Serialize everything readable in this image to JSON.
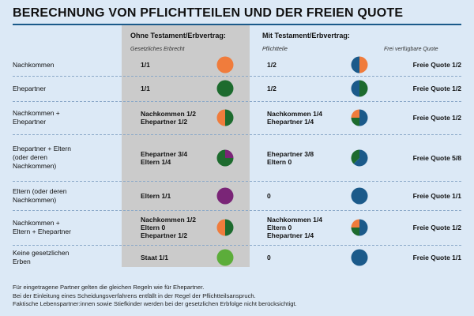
{
  "title": "BERECHNUNG VON PFLICHTTEILEN UND DER FREIEN QUOTE",
  "headers": {
    "col1": "Ohne Testament/Erbvertrag:",
    "col1_sub": "Gesetzliches Erbrecht",
    "col2": "Mit Testament/Erbvertrag:",
    "col2_sub": "Pflichtteile",
    "col3_sub": "Frei verfügbare Quote"
  },
  "colors": {
    "nachkommen": "#f07c3c",
    "ehepartner": "#1d6b2e",
    "eltern": "#7a2577",
    "staat": "#5cad3a",
    "freie_quote": "#1b5a8a"
  },
  "rows": [
    {
      "label": [
        "Nachkommen"
      ],
      "legal": [
        "1/1"
      ],
      "legal_pie": [
        {
          "color": "nachkommen",
          "fraction": 1.0
        }
      ],
      "compulsory": [
        "1/2"
      ],
      "compulsory_pie": [
        {
          "color": "nachkommen",
          "fraction": 0.5
        },
        {
          "color": "freie_quote",
          "fraction": 0.5
        }
      ],
      "free_quote": "Freie Quote 1/2"
    },
    {
      "label": [
        "Ehepartner"
      ],
      "legal": [
        "1/1"
      ],
      "legal_pie": [
        {
          "color": "ehepartner",
          "fraction": 1.0
        }
      ],
      "compulsory": [
        "1/2"
      ],
      "compulsory_pie": [
        {
          "color": "ehepartner",
          "fraction": 0.5
        },
        {
          "color": "freie_quote",
          "fraction": 0.5
        }
      ],
      "free_quote": "Freie Quote 1/2"
    },
    {
      "label": [
        "Nachkommen +",
        "Ehepartner"
      ],
      "legal": [
        "Nachkommen 1/2",
        "Ehepartner 1/2"
      ],
      "legal_pie": [
        {
          "color": "ehepartner",
          "fraction": 0.5
        },
        {
          "color": "nachkommen",
          "fraction": 0.5
        }
      ],
      "compulsory": [
        "Nachkommen 1/4",
        "Ehepartner 1/4"
      ],
      "compulsory_pie": [
        {
          "color": "freie_quote",
          "fraction": 0.5
        },
        {
          "color": "ehepartner",
          "fraction": 0.25
        },
        {
          "color": "nachkommen",
          "fraction": 0.25
        }
      ],
      "free_quote": "Freie Quote 1/2"
    },
    {
      "label": [
        "Ehepartner + Eltern",
        "(oder deren",
        "Nachkommen)"
      ],
      "legal": [
        "Ehepartner 3/4",
        "Eltern 1/4"
      ],
      "legal_pie": [
        {
          "color": "eltern",
          "fraction": 0.25
        },
        {
          "color": "ehepartner",
          "fraction": 0.75
        }
      ],
      "compulsory": [
        "Ehepartner 3/8",
        "Eltern 0"
      ],
      "compulsory_pie": [
        {
          "color": "freie_quote",
          "fraction": 0.625
        },
        {
          "color": "ehepartner",
          "fraction": 0.375
        }
      ],
      "free_quote": "Freie Quote 5/8"
    },
    {
      "label": [
        "Eltern (oder deren",
        "Nachkommen)"
      ],
      "legal": [
        "Eltern 1/1"
      ],
      "legal_pie": [
        {
          "color": "eltern",
          "fraction": 1.0
        }
      ],
      "compulsory": [
        "0"
      ],
      "compulsory_pie": [
        {
          "color": "freie_quote",
          "fraction": 1.0
        }
      ],
      "free_quote": "Freie Quote 1/1"
    },
    {
      "label": [
        "Nachkommen +",
        "Eltern + Ehepartner"
      ],
      "legal": [
        "Nachkommen 1/2",
        "Eltern 0",
        "Ehepartner 1/2"
      ],
      "legal_pie": [
        {
          "color": "ehepartner",
          "fraction": 0.5
        },
        {
          "color": "nachkommen",
          "fraction": 0.5
        }
      ],
      "compulsory": [
        "Nachkommen 1/4",
        "Eltern 0",
        "Ehepartner 1/4"
      ],
      "compulsory_pie": [
        {
          "color": "freie_quote",
          "fraction": 0.5
        },
        {
          "color": "ehepartner",
          "fraction": 0.25
        },
        {
          "color": "nachkommen",
          "fraction": 0.25
        }
      ],
      "free_quote": "Freie Quote 1/2"
    },
    {
      "label": [
        "Keine gesetzlichen",
        "Erben"
      ],
      "legal": [
        "Staat 1/1"
      ],
      "legal_pie": [
        {
          "color": "staat",
          "fraction": 1.0
        }
      ],
      "compulsory": [
        "0"
      ],
      "compulsory_pie": [
        {
          "color": "freie_quote",
          "fraction": 1.0
        }
      ],
      "free_quote": "Freie Quote 1/1"
    }
  ],
  "footnotes": [
    "Für eingetragene Partner gelten die gleichen Regeln wie für Ehepartner.",
    "Bei der Einleitung eines Scheidungsverfahrens entfällt in der Regel der Pflichtteilsanspruch.",
    "Faktische Lebenspartner:innen sowie Stiefkinder werden bei der gesetzlichen Erbfolge nicht berücksichtigt."
  ]
}
